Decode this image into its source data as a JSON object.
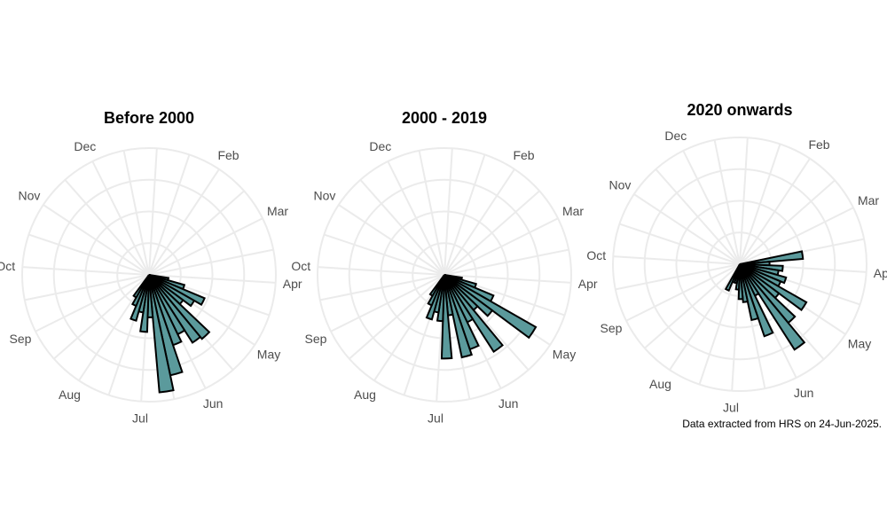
{
  "caption": "Data extracted from HRS on 24-Jun-2025.",
  "colors": {
    "bar_fill": "#5b9a9c",
    "bar_stroke": "#000000",
    "grid": "#ebebeb",
    "label": "#4d4d4d"
  },
  "chart_data": [
    {
      "type": "bar",
      "coord": "polar",
      "title": "Before 2000",
      "month_labels": [
        "Jan",
        "Feb",
        "Mar",
        "Apr",
        "May",
        "Jun",
        "Jul",
        "Aug",
        "Sep",
        "Oct",
        "Nov",
        "Dec"
      ],
      "bin_width_days": 7,
      "bins_day_start": [
        112,
        119,
        126,
        133,
        140,
        147,
        154,
        161,
        168,
        175,
        182,
        189,
        196,
        203,
        210,
        217,
        224
      ],
      "values": [
        0.31,
        0.58,
        0.95,
        0.82,
        0.67,
        1.31,
        1.27,
        1.04,
        1.17,
        1.62,
        1.86,
        0.67,
        0.9,
        0.6,
        0.75,
        0.53,
        0.41
      ],
      "rmax": 2,
      "grid": true
    },
    {
      "type": "bar",
      "coord": "polar",
      "title": "2000 - 2019",
      "month_labels": [
        "Jan",
        "Feb",
        "Mar",
        "Apr",
        "May",
        "Jun",
        "Jul",
        "Aug",
        "Sep",
        "Oct",
        "Nov",
        "Dec"
      ],
      "bin_width_days": 7,
      "bins_day_start": [
        112,
        119,
        126,
        133,
        140,
        147,
        154,
        161,
        168,
        175,
        182,
        189,
        196,
        203,
        210,
        217,
        224
      ],
      "values": [
        0.28,
        0.52,
        0.84,
        1.66,
        0.94,
        0.72,
        1.44,
        0.83,
        1.24,
        1.33,
        0.64,
        1.32,
        0.73,
        0.6,
        0.73,
        0.52,
        0.38
      ],
      "rmax": 2,
      "grid": true
    },
    {
      "type": "bar",
      "coord": "polar",
      "title": "2020 onwards",
      "month_labels": [
        "Jan",
        "Feb",
        "Mar",
        "Apr",
        "May",
        "Jun",
        "Jul",
        "Aug",
        "Sep",
        "Oct",
        "Nov",
        "Dec"
      ],
      "bin_width_days": 7,
      "bins_day_start": [
        91,
        98,
        105,
        112,
        119,
        126,
        133,
        140,
        147,
        154,
        161,
        168,
        175,
        182,
        189,
        196,
        203,
        210,
        217
      ],
      "values": [
        1.0,
        0.47,
        0.68,
        0.62,
        0.76,
        0.7,
        1.21,
        0.77,
        1.2,
        1.6,
        0.55,
        1.2,
        0.9,
        0.6,
        0.55,
        0.4,
        0.3,
        0.3,
        0.45
      ],
      "rmax": 2,
      "grid": true
    }
  ]
}
